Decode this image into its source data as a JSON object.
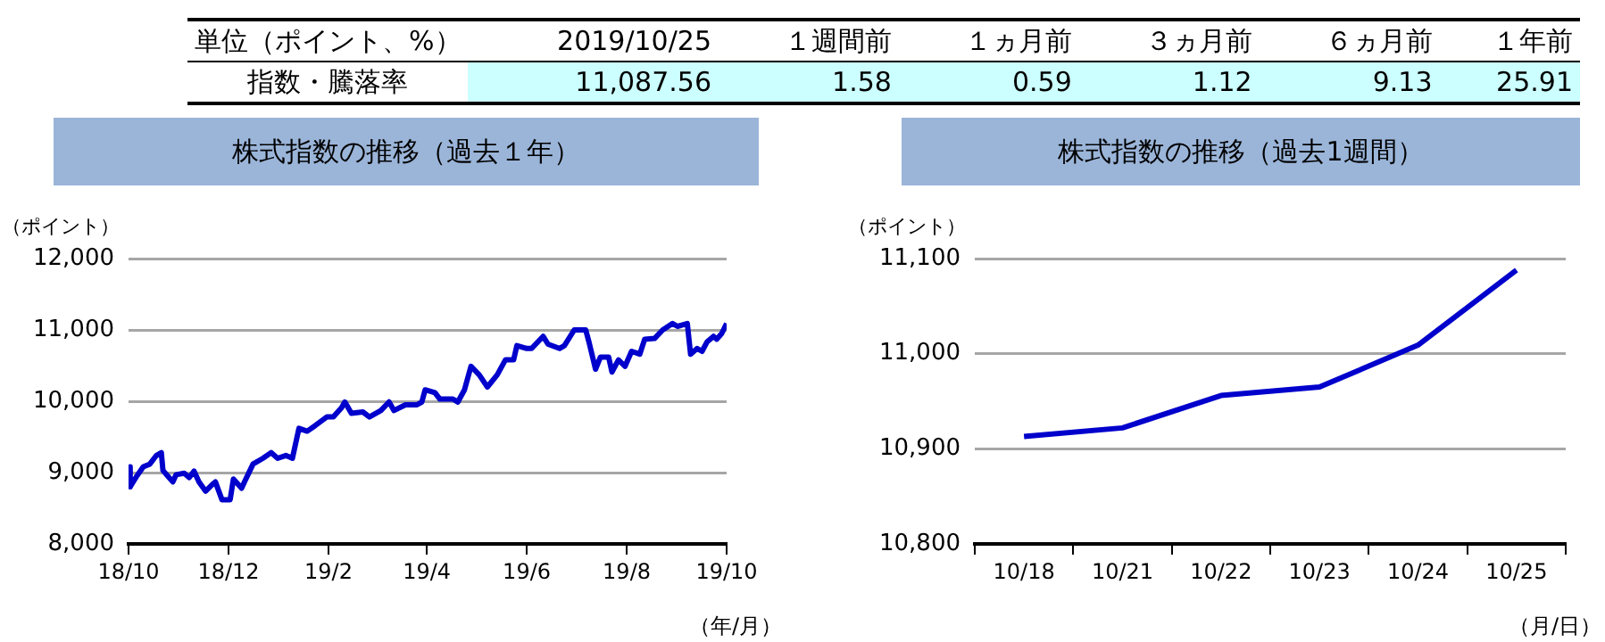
{
  "chart_data": [
    {
      "type": "other",
      "annotations": [
        "単位（ポイント、%）",
        "2019/10/25",
        "１週間前",
        "１ヵ月前",
        "３ヵ月前",
        "６ヵ月前",
        "１年前",
        "指数・騰落率",
        "11,087.56",
        "1.58",
        "0.59",
        "1.12",
        "9.13",
        "25.91"
      ]
    },
    {
      "type": "line",
      "title": "株式指数の推移（過去１年）",
      "ylabel": "（ポイント）",
      "xlabel": "（年/月）",
      "marker": "none",
      "line_style": "solid",
      "grid": "y",
      "legend": false,
      "x": [
        "2018-10-25",
        "2018-10-26",
        "2018-10-30",
        "2018-11-03",
        "2018-11-07",
        "2018-11-11",
        "2018-11-14",
        "2018-11-15",
        "2018-11-18",
        "2018-11-21",
        "2018-11-23",
        "2018-11-28",
        "2018-12-01",
        "2018-12-04",
        "2018-12-07",
        "2018-12-11",
        "2018-12-15",
        "2018-12-17",
        "2018-12-21",
        "2018-12-26",
        "2018-12-28",
        "2019-01-02",
        "2019-01-04",
        "2019-01-09",
        "2019-01-15",
        "2019-01-20",
        "2019-01-24",
        "2019-01-29",
        "2019-02-02",
        "2019-02-06",
        "2019-02-11",
        "2019-02-16",
        "2019-02-23",
        "2019-02-27",
        "2019-03-04",
        "2019-03-06",
        "2019-03-10",
        "2019-03-17",
        "2019-03-21",
        "2019-03-28",
        "2019-04-02",
        "2019-04-05",
        "2019-04-12",
        "2019-04-19",
        "2019-04-22",
        "2019-04-24",
        "2019-04-30",
        "2019-05-03",
        "2019-05-11",
        "2019-05-14",
        "2019-05-18",
        "2019-05-22",
        "2019-05-27",
        "2019-06-01",
        "2019-06-07",
        "2019-06-12",
        "2019-06-17",
        "2019-06-19",
        "2019-06-25",
        "2019-06-28",
        "2019-07-05",
        "2019-07-08",
        "2019-07-15",
        "2019-07-18",
        "2019-07-24",
        "2019-07-31",
        "2019-08-02",
        "2019-08-06",
        "2019-08-09",
        "2019-08-14",
        "2019-08-16",
        "2019-08-20",
        "2019-08-24",
        "2019-08-28",
        "2019-09-02",
        "2019-09-05",
        "2019-09-11",
        "2019-09-16",
        "2019-09-22",
        "2019-09-25",
        "2019-10-01",
        "2019-10-03",
        "2019-10-07",
        "2019-10-10",
        "2019-10-13",
        "2019-10-17",
        "2019-10-19",
        "2019-10-22",
        "2019-10-25"
      ],
      "series": [
        {
          "color": "#0000cc",
          "values": [
            9080,
            8800,
            8950,
            9080,
            9120,
            9240,
            9280,
            9030,
            8950,
            8870,
            8970,
            8990,
            8930,
            9020,
            8870,
            8740,
            8830,
            8870,
            8620,
            8620,
            8910,
            8780,
            8880,
            9120,
            9200,
            9280,
            9200,
            9240,
            9200,
            9620,
            9580,
            9660,
            9780,
            9780,
            9910,
            9990,
            9830,
            9850,
            9780,
            9870,
            9990,
            9870,
            9950,
            9950,
            9990,
            10160,
            10120,
            10030,
            10030,
            9990,
            10160,
            10490,
            10370,
            10200,
            10370,
            10580,
            10580,
            10780,
            10740,
            10740,
            10910,
            10800,
            10740,
            10780,
            11000,
            11000,
            10830,
            10450,
            10620,
            10620,
            10410,
            10580,
            10490,
            10700,
            10660,
            10870,
            10880,
            11000,
            11090,
            11050,
            11090,
            10660,
            10740,
            10700,
            10830,
            10910,
            10870,
            10950,
            11090
          ]
        }
      ],
      "xlim": [
        "2018-10-25",
        "2019-10-25"
      ],
      "xticks": [
        {
          "value": "2018-10-25",
          "label": "18/10"
        },
        {
          "value": "2018-12-25",
          "label": "18/12"
        },
        {
          "value": "2019-02-24",
          "label": "19/2"
        },
        {
          "value": "2019-04-25",
          "label": "19/4"
        },
        {
          "value": "2019-06-25",
          "label": "19/6"
        },
        {
          "value": "2019-08-25",
          "label": "19/8"
        },
        {
          "value": "2019-10-25",
          "label": "19/10"
        }
      ],
      "ylim": [
        8000,
        12000
      ],
      "yticks": [
        {
          "value": 8000,
          "label": "8,000"
        },
        {
          "value": 9000,
          "label": "9,000"
        },
        {
          "value": 10000,
          "label": "10,000"
        },
        {
          "value": 11000,
          "label": "11,000"
        },
        {
          "value": 12000,
          "label": "12,000"
        }
      ]
    },
    {
      "type": "line",
      "title": "株式指数の推移（過去1週間）",
      "ylabel": "（ポイント）",
      "xlabel": "（月/日）",
      "marker": "none",
      "line_style": "solid",
      "grid": "y",
      "legend": false,
      "categories": [
        "10/18",
        "10/21",
        "10/22",
        "10/23",
        "10/24",
        "10/25"
      ],
      "series": [
        {
          "color": "#0000cc",
          "values": [
            10913,
            10922,
            10956,
            10965,
            11009,
            11088
          ]
        }
      ],
      "ylim": [
        10800,
        11100
      ],
      "yticks": [
        {
          "value": 10800,
          "label": "10,800"
        },
        {
          "value": 10900,
          "label": "10,900"
        },
        {
          "value": 11000,
          "label": "11,000"
        },
        {
          "value": 11100,
          "label": "11,100"
        }
      ]
    }
  ]
}
